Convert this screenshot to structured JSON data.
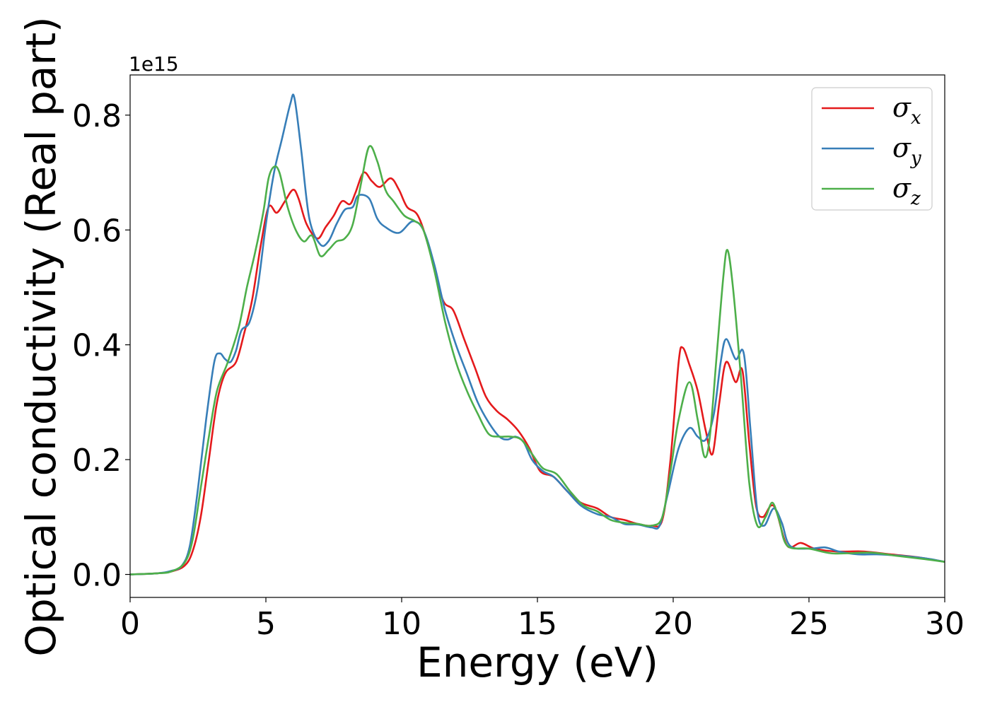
{
  "chart_data": {
    "type": "line",
    "xlabel": "Energy (eV)",
    "ylabel": "Optical conductivity (Real part)",
    "y_exponent_label": "1e15",
    "xlim": [
      0,
      30
    ],
    "ylim": [
      -0.04,
      0.87
    ],
    "x_ticks": [
      0,
      5,
      10,
      15,
      20,
      25,
      30
    ],
    "y_ticks": [
      0.0,
      0.2,
      0.4,
      0.6,
      0.8
    ],
    "x_tick_labels": [
      "0",
      "5",
      "10",
      "15",
      "20",
      "25",
      "30"
    ],
    "y_tick_labels": [
      "0.0",
      "0.2",
      "0.4",
      "0.6",
      "0.8"
    ],
    "grid": false,
    "legend_position": "top-right",
    "series": [
      {
        "name": "σx",
        "symbol": "σ",
        "subscript": "x",
        "color": "#e41a1c",
        "points": [
          [
            0,
            0.0
          ],
          [
            1,
            0.002
          ],
          [
            1.5,
            0.005
          ],
          [
            2,
            0.015
          ],
          [
            2.3,
            0.04
          ],
          [
            2.6,
            0.1
          ],
          [
            2.9,
            0.2
          ],
          [
            3.2,
            0.3
          ],
          [
            3.5,
            0.35
          ],
          [
            3.9,
            0.37
          ],
          [
            4.2,
            0.42
          ],
          [
            4.5,
            0.48
          ],
          [
            4.8,
            0.57
          ],
          [
            5.1,
            0.64
          ],
          [
            5.4,
            0.63
          ],
          [
            5.7,
            0.65
          ],
          [
            6.0,
            0.67
          ],
          [
            6.2,
            0.655
          ],
          [
            6.5,
            0.61
          ],
          [
            6.9,
            0.585
          ],
          [
            7.2,
            0.605
          ],
          [
            7.5,
            0.625
          ],
          [
            7.8,
            0.65
          ],
          [
            8.1,
            0.645
          ],
          [
            8.3,
            0.665
          ],
          [
            8.6,
            0.7
          ],
          [
            8.9,
            0.685
          ],
          [
            9.2,
            0.675
          ],
          [
            9.6,
            0.69
          ],
          [
            9.9,
            0.67
          ],
          [
            10.2,
            0.64
          ],
          [
            10.6,
            0.625
          ],
          [
            11,
            0.57
          ],
          [
            11.5,
            0.48
          ],
          [
            11.9,
            0.46
          ],
          [
            12.3,
            0.41
          ],
          [
            12.7,
            0.36
          ],
          [
            13.1,
            0.31
          ],
          [
            13.5,
            0.285
          ],
          [
            13.9,
            0.27
          ],
          [
            14.3,
            0.25
          ],
          [
            14.7,
            0.22
          ],
          [
            15.1,
            0.18
          ],
          [
            15.6,
            0.17
          ],
          [
            16.1,
            0.145
          ],
          [
            16.6,
            0.125
          ],
          [
            17.2,
            0.115
          ],
          [
            17.7,
            0.1
          ],
          [
            18.2,
            0.095
          ],
          [
            18.7,
            0.088
          ],
          [
            19.2,
            0.085
          ],
          [
            19.6,
            0.095
          ],
          [
            19.9,
            0.2
          ],
          [
            20.2,
            0.37
          ],
          [
            20.35,
            0.395
          ],
          [
            20.6,
            0.365
          ],
          [
            20.9,
            0.32
          ],
          [
            21.2,
            0.25
          ],
          [
            21.45,
            0.21
          ],
          [
            21.7,
            0.3
          ],
          [
            21.95,
            0.37
          ],
          [
            22.3,
            0.335
          ],
          [
            22.55,
            0.355
          ],
          [
            22.8,
            0.23
          ],
          [
            23.05,
            0.12
          ],
          [
            23.3,
            0.1
          ],
          [
            23.6,
            0.12
          ],
          [
            23.8,
            0.11
          ],
          [
            24.2,
            0.05
          ],
          [
            24.7,
            0.055
          ],
          [
            25.2,
            0.045
          ],
          [
            26,
            0.04
          ],
          [
            27,
            0.04
          ],
          [
            28,
            0.035
          ],
          [
            29,
            0.03
          ],
          [
            30,
            0.022
          ]
        ]
      },
      {
        "name": "σy",
        "symbol": "σ",
        "subscript": "y",
        "color": "#377eb8",
        "points": [
          [
            0,
            0.0
          ],
          [
            1,
            0.002
          ],
          [
            1.5,
            0.006
          ],
          [
            1.9,
            0.015
          ],
          [
            2.2,
            0.05
          ],
          [
            2.5,
            0.15
          ],
          [
            2.8,
            0.27
          ],
          [
            3.1,
            0.37
          ],
          [
            3.3,
            0.385
          ],
          [
            3.5,
            0.375
          ],
          [
            3.7,
            0.37
          ],
          [
            3.9,
            0.39
          ],
          [
            4.1,
            0.425
          ],
          [
            4.4,
            0.44
          ],
          [
            4.7,
            0.5
          ],
          [
            5.0,
            0.61
          ],
          [
            5.3,
            0.7
          ],
          [
            5.6,
            0.76
          ],
          [
            5.9,
            0.82
          ],
          [
            6.05,
            0.83
          ],
          [
            6.3,
            0.74
          ],
          [
            6.6,
            0.62
          ],
          [
            7.0,
            0.575
          ],
          [
            7.3,
            0.58
          ],
          [
            7.6,
            0.61
          ],
          [
            7.9,
            0.635
          ],
          [
            8.2,
            0.64
          ],
          [
            8.4,
            0.66
          ],
          [
            8.8,
            0.655
          ],
          [
            9.1,
            0.62
          ],
          [
            9.4,
            0.605
          ],
          [
            9.9,
            0.595
          ],
          [
            10.4,
            0.615
          ],
          [
            10.8,
            0.6
          ],
          [
            11.2,
            0.54
          ],
          [
            11.6,
            0.46
          ],
          [
            12,
            0.4
          ],
          [
            12.4,
            0.35
          ],
          [
            12.8,
            0.3
          ],
          [
            13.2,
            0.265
          ],
          [
            13.6,
            0.24
          ],
          [
            13.9,
            0.235
          ],
          [
            14.2,
            0.24
          ],
          [
            14.5,
            0.23
          ],
          [
            14.8,
            0.2
          ],
          [
            15.2,
            0.18
          ],
          [
            15.6,
            0.17
          ],
          [
            16.1,
            0.145
          ],
          [
            16.6,
            0.12
          ],
          [
            17.2,
            0.105
          ],
          [
            17.7,
            0.1
          ],
          [
            18.2,
            0.088
          ],
          [
            18.7,
            0.087
          ],
          [
            19.2,
            0.082
          ],
          [
            19.5,
            0.085
          ],
          [
            19.8,
            0.14
          ],
          [
            20.2,
            0.22
          ],
          [
            20.6,
            0.255
          ],
          [
            20.9,
            0.24
          ],
          [
            21.2,
            0.235
          ],
          [
            21.5,
            0.28
          ],
          [
            21.75,
            0.37
          ],
          [
            21.95,
            0.41
          ],
          [
            22.3,
            0.375
          ],
          [
            22.6,
            0.385
          ],
          [
            22.85,
            0.25
          ],
          [
            23.1,
            0.11
          ],
          [
            23.35,
            0.085
          ],
          [
            23.7,
            0.115
          ],
          [
            24.0,
            0.09
          ],
          [
            24.3,
            0.05
          ],
          [
            25,
            0.045
          ],
          [
            25.6,
            0.047
          ],
          [
            26.1,
            0.04
          ],
          [
            26.8,
            0.035
          ],
          [
            27.5,
            0.035
          ],
          [
            28.5,
            0.032
          ],
          [
            29.3,
            0.028
          ],
          [
            30,
            0.022
          ]
        ]
      },
      {
        "name": "σz",
        "symbol": "σ",
        "subscript": "z",
        "color": "#4daf4a",
        "points": [
          [
            0,
            0.0
          ],
          [
            1,
            0.002
          ],
          [
            1.5,
            0.005
          ],
          [
            2,
            0.02
          ],
          [
            2.3,
            0.06
          ],
          [
            2.6,
            0.15
          ],
          [
            2.9,
            0.24
          ],
          [
            3.2,
            0.32
          ],
          [
            3.6,
            0.37
          ],
          [
            4.0,
            0.43
          ],
          [
            4.3,
            0.5
          ],
          [
            4.6,
            0.56
          ],
          [
            4.9,
            0.63
          ],
          [
            5.1,
            0.69
          ],
          [
            5.3,
            0.71
          ],
          [
            5.5,
            0.7
          ],
          [
            5.8,
            0.64
          ],
          [
            6.1,
            0.6
          ],
          [
            6.4,
            0.58
          ],
          [
            6.7,
            0.59
          ],
          [
            7.0,
            0.555
          ],
          [
            7.3,
            0.565
          ],
          [
            7.6,
            0.58
          ],
          [
            7.9,
            0.585
          ],
          [
            8.2,
            0.61
          ],
          [
            8.5,
            0.68
          ],
          [
            8.8,
            0.745
          ],
          [
            9.1,
            0.72
          ],
          [
            9.4,
            0.67
          ],
          [
            9.7,
            0.65
          ],
          [
            10.1,
            0.625
          ],
          [
            10.5,
            0.615
          ],
          [
            10.8,
            0.6
          ],
          [
            11.2,
            0.53
          ],
          [
            11.6,
            0.44
          ],
          [
            12.0,
            0.37
          ],
          [
            12.4,
            0.32
          ],
          [
            12.8,
            0.28
          ],
          [
            13.2,
            0.245
          ],
          [
            13.6,
            0.24
          ],
          [
            14.0,
            0.24
          ],
          [
            14.4,
            0.235
          ],
          [
            14.8,
            0.21
          ],
          [
            15.2,
            0.185
          ],
          [
            15.7,
            0.175
          ],
          [
            16.2,
            0.145
          ],
          [
            16.7,
            0.12
          ],
          [
            17.2,
            0.11
          ],
          [
            17.7,
            0.095
          ],
          [
            18.2,
            0.09
          ],
          [
            18.7,
            0.088
          ],
          [
            19.2,
            0.085
          ],
          [
            19.6,
            0.1
          ],
          [
            19.9,
            0.18
          ],
          [
            20.2,
            0.27
          ],
          [
            20.6,
            0.335
          ],
          [
            20.9,
            0.27
          ],
          [
            21.15,
            0.205
          ],
          [
            21.35,
            0.24
          ],
          [
            21.6,
            0.38
          ],
          [
            21.85,
            0.52
          ],
          [
            22.0,
            0.565
          ],
          [
            22.2,
            0.5
          ],
          [
            22.5,
            0.34
          ],
          [
            22.8,
            0.16
          ],
          [
            23.1,
            0.085
          ],
          [
            23.4,
            0.1
          ],
          [
            23.65,
            0.125
          ],
          [
            23.9,
            0.095
          ],
          [
            24.2,
            0.05
          ],
          [
            25,
            0.045
          ],
          [
            25.8,
            0.037
          ],
          [
            26.5,
            0.037
          ],
          [
            27.3,
            0.038
          ],
          [
            28.3,
            0.032
          ],
          [
            29.2,
            0.027
          ],
          [
            30,
            0.022
          ]
        ]
      }
    ]
  }
}
